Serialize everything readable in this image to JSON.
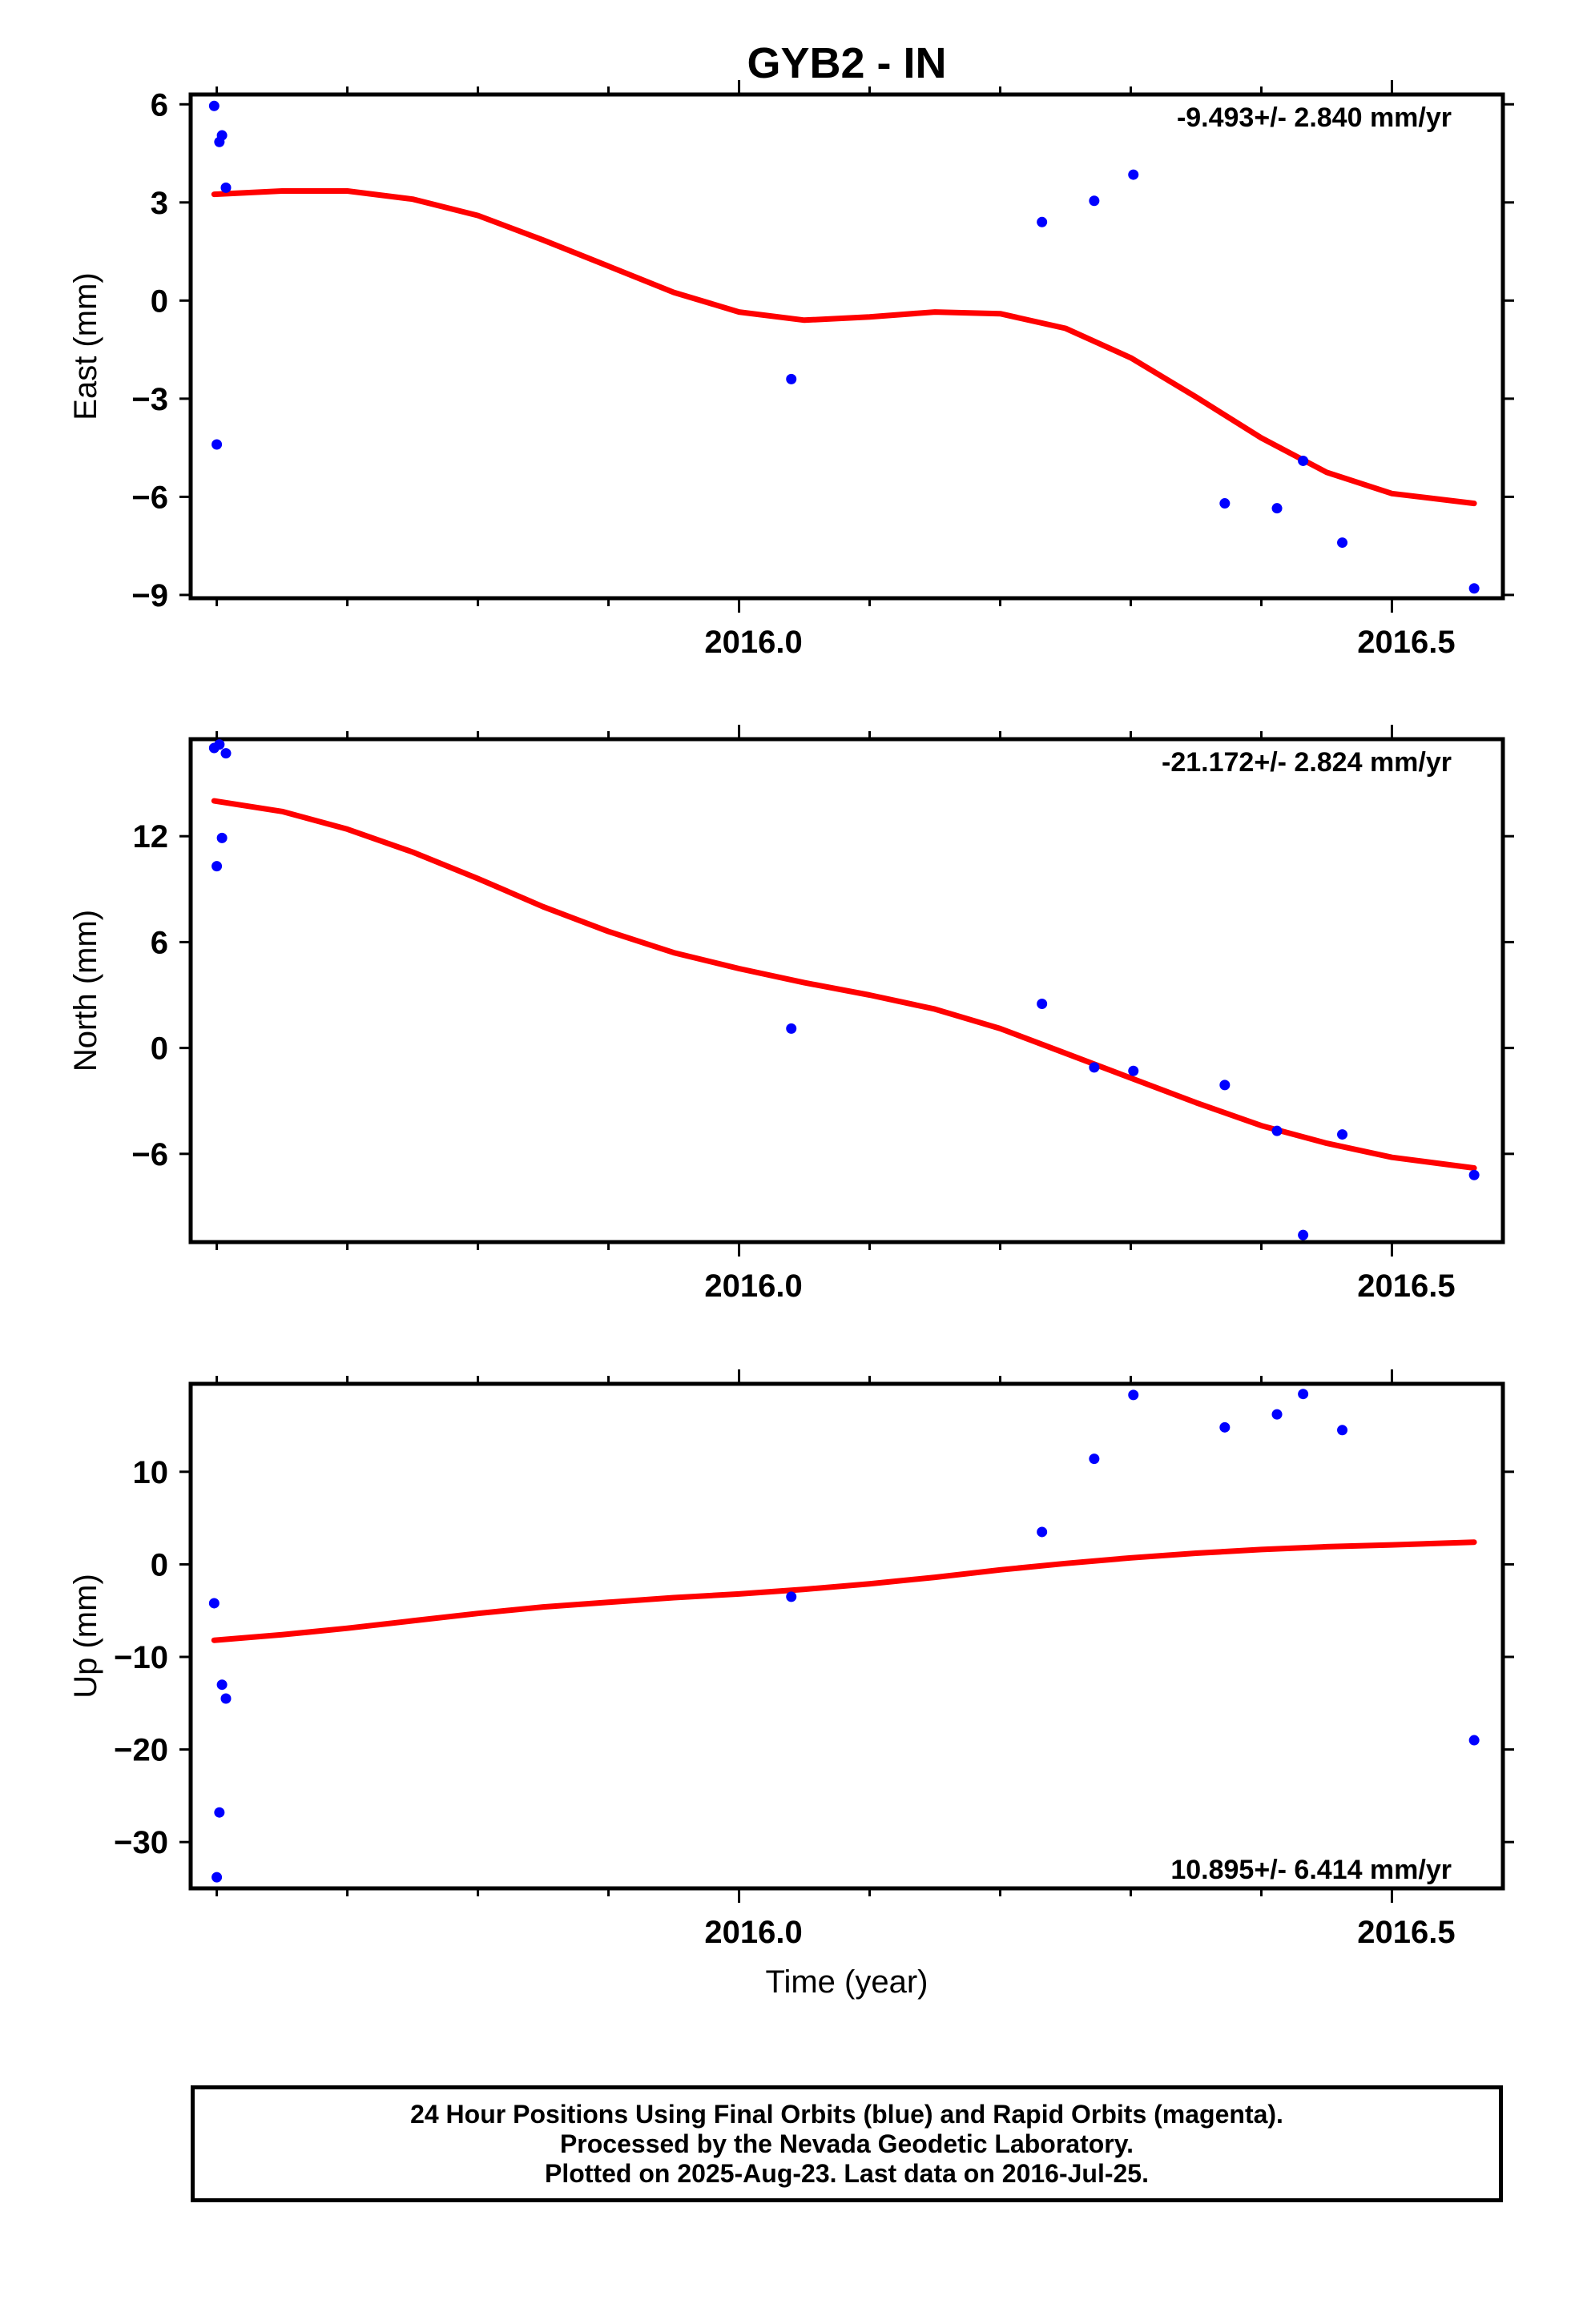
{
  "title": "GYB2 - IN",
  "xlabel": "Time (year)",
  "footer": {
    "line1": "24 Hour Positions Using Final Orbits (blue) and Rapid Orbits (magenta).",
    "line2": "Processed by the Nevada Geodetic Laboratory.",
    "line3": "Plotted on 2025-Aug-23. Last data on 2016-Jul-25."
  },
  "colors": {
    "final_orbits": "#0000ff",
    "fit": "#ff0000",
    "frame": "#000000"
  },
  "chart_data": [
    {
      "type": "scatter",
      "panel": "east",
      "ylabel": "East (mm)",
      "rate": "-9.493+/- 2.840 mm/yr",
      "xlim": [
        2015.58,
        2016.585
      ],
      "ylim": [
        -9.1,
        6.3
      ],
      "yticks": [
        6,
        3,
        0,
        -3,
        -6,
        -9
      ],
      "ytick_labels": [
        "6",
        "3",
        "0",
        "−3",
        "−6",
        "−9"
      ],
      "xticks": [
        2016.0,
        2016.5
      ],
      "xtick_labels": [
        "2016.0",
        "2016.5"
      ],
      "x_minor_ticks": [
        2015.6,
        2015.7,
        2015.8,
        2015.9,
        2016.1,
        2016.2,
        2016.3,
        2016.4
      ],
      "series": [
        {
          "x": [
            2015.598,
            2015.6,
            2015.602,
            2015.604,
            2015.607,
            2016.04,
            2016.232,
            2016.272,
            2016.302,
            2016.372,
            2016.412,
            2016.432,
            2016.462,
            2016.563
          ],
          "y": [
            5.95,
            -4.4,
            4.85,
            5.05,
            3.45,
            -2.4,
            2.4,
            3.05,
            3.85,
            -6.2,
            -6.35,
            -4.9,
            -7.4,
            -8.8
          ]
        }
      ],
      "fit": {
        "x": [
          2015.598,
          2015.65,
          2015.7,
          2015.75,
          2015.8,
          2015.85,
          2015.9,
          2015.95,
          2016.0,
          2016.05,
          2016.1,
          2016.15,
          2016.2,
          2016.25,
          2016.3,
          2016.35,
          2016.4,
          2016.45,
          2016.5,
          2016.563
        ],
        "y": [
          3.25,
          3.35,
          3.35,
          3.1,
          2.6,
          1.85,
          1.05,
          0.25,
          -0.35,
          -0.6,
          -0.5,
          -0.35,
          -0.4,
          -0.85,
          -1.75,
          -2.95,
          -4.2,
          -5.25,
          -5.9,
          -6.2
        ]
      }
    },
    {
      "type": "scatter",
      "panel": "north",
      "ylabel": "North (mm)",
      "rate": "-21.172+/- 2.824 mm/yr",
      "xlim": [
        2015.58,
        2016.585
      ],
      "ylim": [
        -11,
        17.5
      ],
      "yticks": [
        12,
        6,
        0,
        -6
      ],
      "ytick_labels": [
        "12",
        "6",
        "0",
        "−6"
      ],
      "xticks": [
        2016.0,
        2016.5
      ],
      "xtick_labels": [
        "2016.0",
        "2016.5"
      ],
      "x_minor_ticks": [
        2015.6,
        2015.7,
        2015.8,
        2015.9,
        2016.1,
        2016.2,
        2016.3,
        2016.4
      ],
      "series": [
        {
          "x": [
            2015.598,
            2015.6,
            2015.602,
            2015.604,
            2015.607,
            2016.04,
            2016.232,
            2016.272,
            2016.302,
            2016.372,
            2016.412,
            2016.432,
            2016.462,
            2016.563
          ],
          "y": [
            17.0,
            10.3,
            17.2,
            11.9,
            16.7,
            1.1,
            2.5,
            -1.1,
            -1.3,
            -2.1,
            -4.7,
            -10.6,
            -4.9,
            -7.2
          ]
        }
      ],
      "fit": {
        "x": [
          2015.598,
          2015.65,
          2015.7,
          2015.75,
          2015.8,
          2015.85,
          2015.9,
          2015.95,
          2016.0,
          2016.05,
          2016.1,
          2016.15,
          2016.2,
          2016.25,
          2016.3,
          2016.35,
          2016.4,
          2016.45,
          2016.5,
          2016.563
        ],
        "y": [
          14.0,
          13.4,
          12.4,
          11.1,
          9.6,
          8.0,
          6.6,
          5.4,
          4.5,
          3.7,
          3.0,
          2.2,
          1.1,
          -0.3,
          -1.7,
          -3.1,
          -4.4,
          -5.4,
          -6.2,
          -6.8
        ]
      }
    },
    {
      "type": "scatter",
      "panel": "up",
      "ylabel": "Up (mm)",
      "rate": "10.895+/- 6.414 mm/yr",
      "xlim": [
        2015.58,
        2016.585
      ],
      "ylim": [
        -35,
        19.5
      ],
      "yticks": [
        10,
        0,
        -10,
        -20,
        -30
      ],
      "ytick_labels": [
        "10",
        "0",
        "−10",
        "−20",
        "−30"
      ],
      "xticks": [
        2016.0,
        2016.5
      ],
      "xtick_labels": [
        "2016.0",
        "2016.5"
      ],
      "x_minor_ticks": [
        2015.6,
        2015.7,
        2015.8,
        2015.9,
        2016.1,
        2016.2,
        2016.3,
        2016.4
      ],
      "series": [
        {
          "x": [
            2015.598,
            2015.6,
            2015.602,
            2015.604,
            2015.607,
            2016.04,
            2016.232,
            2016.272,
            2016.302,
            2016.372,
            2016.412,
            2016.432,
            2016.462,
            2016.563
          ],
          "y": [
            -4.2,
            -33.8,
            -26.8,
            -13,
            -14.5,
            -3.5,
            3.5,
            11.4,
            18.3,
            14.8,
            16.2,
            18.4,
            14.5,
            -19
          ]
        }
      ],
      "fit": {
        "x": [
          2015.598,
          2015.65,
          2015.7,
          2015.75,
          2015.8,
          2015.85,
          2015.9,
          2015.95,
          2016.0,
          2016.05,
          2016.1,
          2016.15,
          2016.2,
          2016.25,
          2016.3,
          2016.35,
          2016.4,
          2016.45,
          2016.5,
          2016.563
        ],
        "y": [
          -8.2,
          -7.6,
          -6.9,
          -6.1,
          -5.3,
          -4.6,
          -4.1,
          -3.6,
          -3.2,
          -2.7,
          -2.1,
          -1.4,
          -0.6,
          0.1,
          0.7,
          1.2,
          1.6,
          1.9,
          2.1,
          2.4
        ]
      }
    }
  ]
}
